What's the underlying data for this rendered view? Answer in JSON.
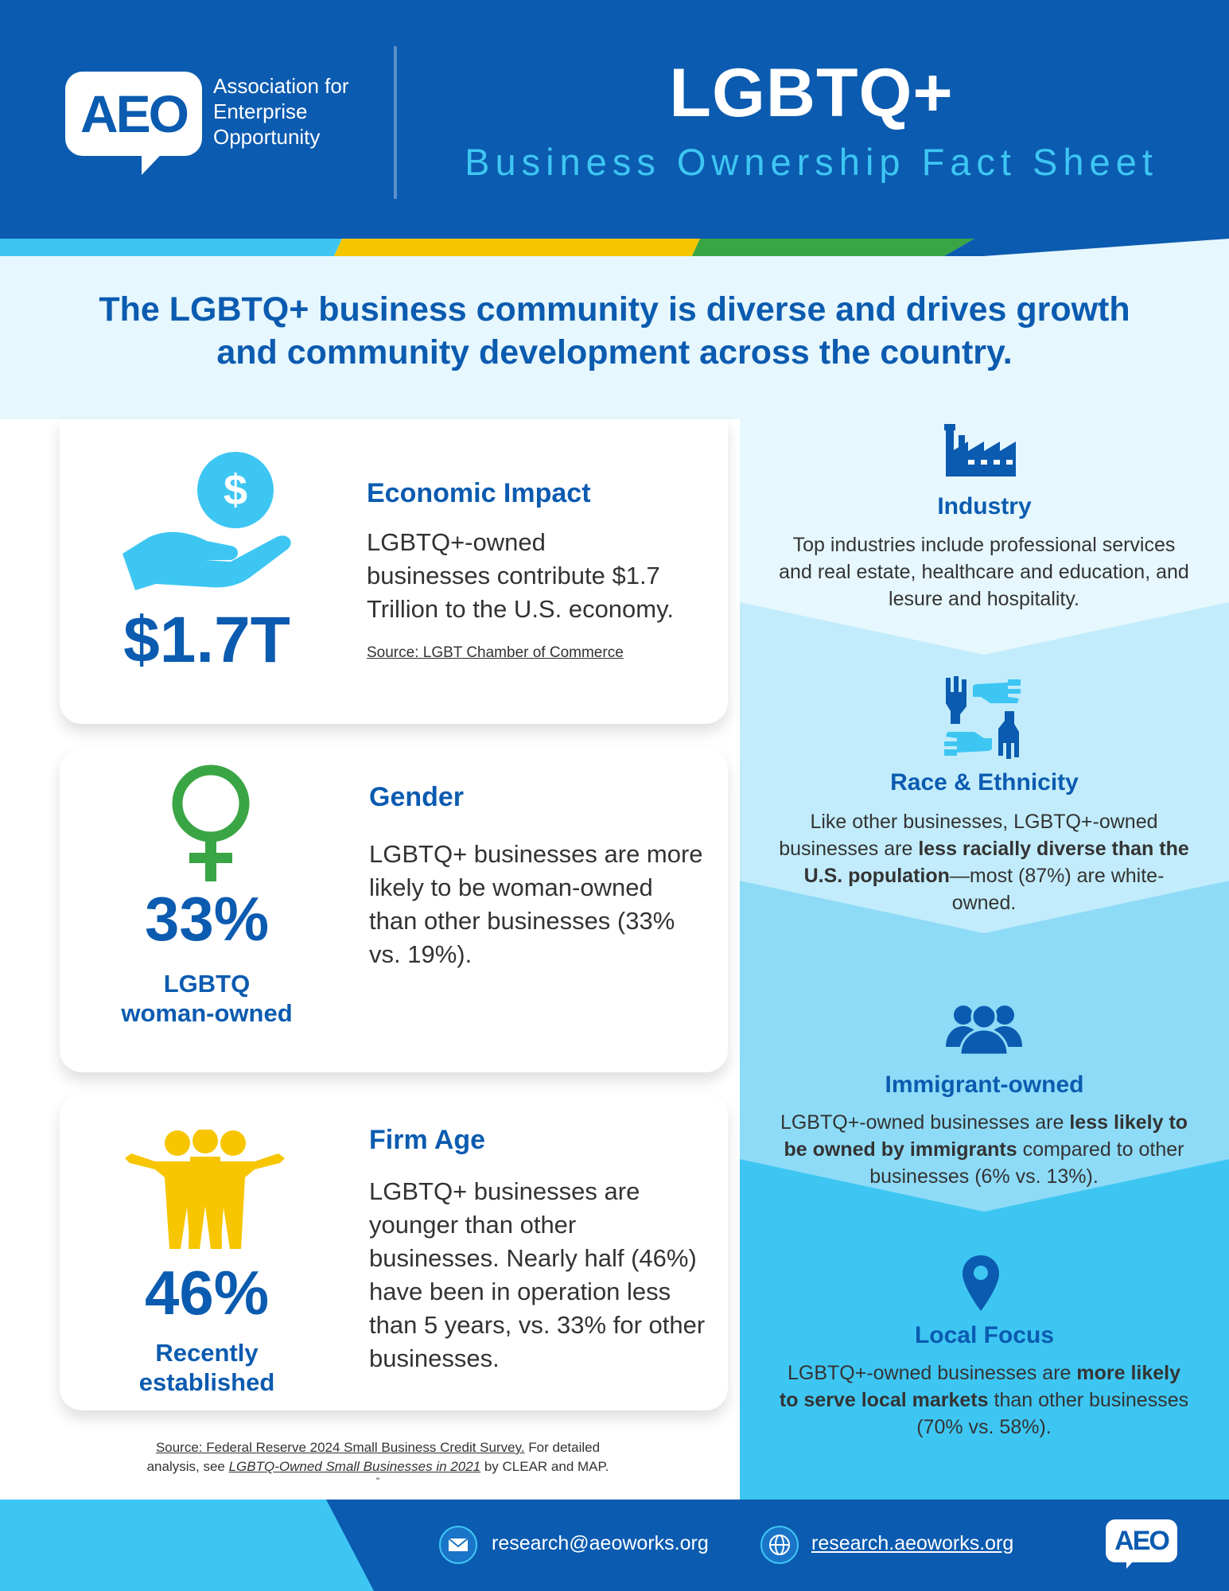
{
  "header": {
    "logo_text": "AEO",
    "org_name_lines": [
      "Association for",
      "Enterprise",
      "Opportunity"
    ],
    "title": "LGBTQ+",
    "subtitle": "Business Ownership Fact Sheet"
  },
  "banner": {
    "line1": "The LGBTQ+ business community is diverse and drives growth",
    "line2": "and community development across the country."
  },
  "cards": [
    {
      "title": "Economic Impact",
      "body_lines": [
        "LGBTQ+-owned",
        "businesses contribute $1.7",
        "Trillion to the U.S. economy."
      ],
      "source": "Source: LGBT Chamber of Commerce",
      "stat": "$1.7T",
      "icon": "hand-dollar-icon"
    },
    {
      "title": "Gender",
      "body_lines": [
        "LGBTQ+ businesses are more",
        "likely to be woman-owned",
        "than other businesses (33%",
        "vs. 19%)."
      ],
      "stat": "33%",
      "stat_sub_lines": [
        "LGBTQ",
        "woman-owned"
      ],
      "icon": "female-symbol-icon"
    },
    {
      "title": "Firm Age",
      "body_lines": [
        "LGBTQ+ businesses are",
        "younger than other",
        "businesses. Nearly half (46%)",
        "have been in operation less",
        "than 5 years, vs. 33% for other",
        "businesses."
      ],
      "stat": "46%",
      "stat_sub_lines": [
        "Recently",
        "established"
      ],
      "icon": "group-people-icon"
    }
  ],
  "footnote": {
    "source_link": "Source: Federal Reserve 2024 Small Business Credit Survey.",
    "source_rest": " For detailed",
    "line2_prefix": "analysis, see ",
    "report_link": "LGBTQ-Owned Small Businesses in 2021",
    "line2_suffix": " by CLEAR and MAP.",
    "mark": "\""
  },
  "right": [
    {
      "title": "Industry",
      "body_html": "Top industries include professional services and real estate, healthcare and education, and lesure and hospitality.",
      "icon": "factory-icon"
    },
    {
      "title": "Race & Ethnicity",
      "body_html": "Like other businesses, LGBTQ+-owned businesses are <b>less racially diverse than the U.S. population</b>—most (87%) are white-owned.",
      "icon": "hands-circle-icon"
    },
    {
      "title": "Immigrant-owned",
      "body_html": "LGBTQ+-owned businesses are <b>less likely to be owned by immigrants</b> compared to other businesses (6% vs. 13%).",
      "icon": "people-group-icon"
    },
    {
      "title": "Local Focus",
      "body_html": "LGBTQ+-owned businesses are <b>more likely to serve local markets</b> than other businesses (70% vs. 58%).",
      "icon": "location-pin-icon"
    }
  ],
  "footer": {
    "email": "research@aeoworks.org",
    "website": "research.aeoworks.org",
    "logo_text": "AEO"
  },
  "colors": {
    "brand_blue": "#0b5bb0",
    "light_blue": "#3ec6f3",
    "yellow": "#f7c600",
    "green": "#3aa544",
    "banner_bg": "#e6f7fd"
  }
}
